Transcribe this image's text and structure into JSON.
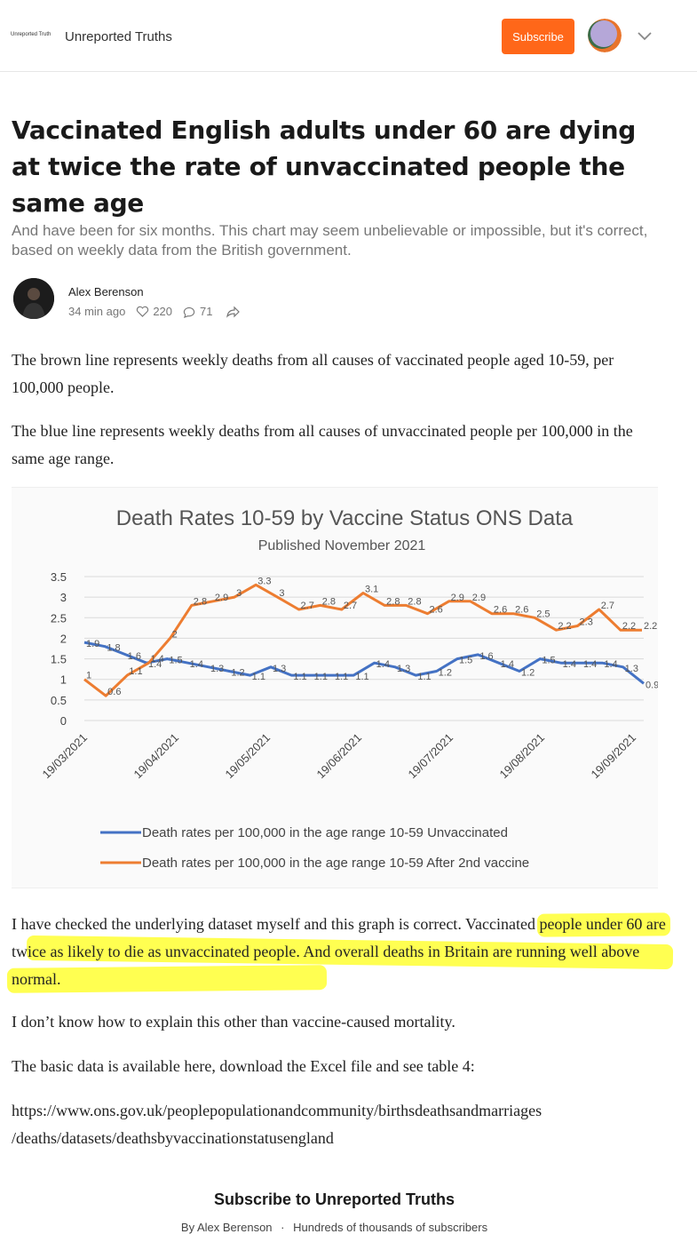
{
  "header": {
    "logo_text": "Unreported Truth",
    "publication": "Unreported Truths",
    "subscribe_label": "Subscribe"
  },
  "article": {
    "title": "Vaccinated English adults under 60 are dying at twice the rate of unvaccinated people the same age",
    "subtitle": "And have been for six months. This chart may seem unbelievable or impossible, but it's correct, based on weekly data from the British government.",
    "author": "Alex Berenson",
    "time": "34 min ago",
    "likes": "220",
    "comments": "71",
    "p1": "The brown line represents weekly deaths from all causes of vaccinated people aged 10-59, per 100,000 people.",
    "p2": "The blue line represents weekly deaths from all causes of unvaccinated people per 100,000 in the same age range.",
    "p3": "I have checked the underlying dataset myself and this graph is correct. Vaccinated people under 60 are twice as likely to die as unvaccinated people. And overall deaths in Britain are running well above normal.",
    "p4": "I don’t know how to explain this other than vaccine-caused mortality.",
    "p5": "The basic data is available here, download the Excel file and see table 4:",
    "p6_line1": "https://www.ons.gov.uk/peoplepopulationandcommunity/birthsdeathsandmarriages",
    "p6_line2": "/deaths/datasets/deathsbyvaccinationstatusengland"
  },
  "footer": {
    "title": "Subscribe to Unreported Truths",
    "by": "By Alex Berenson",
    "separator": "·",
    "subscribers": "Hundreds of thousands of subscribers"
  },
  "colors": {
    "accent": "#ff6719",
    "unvaccinated": "#4472c4",
    "vaccinated": "#ed7d31",
    "highlight": "#ffff33"
  },
  "chart_data": {
    "type": "line",
    "title": "Death Rates 10-59  by Vaccine Status ONS Data",
    "subtitle": "Published November 2021",
    "ylim": [
      0,
      3.5
    ],
    "yticks": [
      "0",
      "0.5",
      "1",
      "1.5",
      "2",
      "2.5",
      "3",
      "3.5"
    ],
    "xticks": [
      "19/03/2021",
      "19/04/2021",
      "19/05/2021",
      "19/06/2021",
      "19/07/2021",
      "19/08/2021",
      "19/09/2021"
    ],
    "grid": true,
    "legend_position": "bottom",
    "series": [
      {
        "name": "Death rates per 100,000 in the age range 10-59 Unvaccinated",
        "color": "#4472c4",
        "values": [
          1.9,
          1.8,
          1.6,
          1.4,
          1.5,
          1.4,
          1.3,
          1.2,
          1.1,
          1.3,
          1.1,
          1.1,
          1.1,
          1.1,
          1.4,
          1.3,
          1.1,
          1.2,
          1.5,
          1.6,
          1.4,
          1.2,
          1.5,
          1.4,
          1.4,
          1.4,
          1.3,
          0.9
        ],
        "labels": [
          "1.9",
          "1.8",
          "1.6",
          "1.4",
          "1.5",
          "1.4",
          "1.3",
          "1.2",
          "1.1",
          "1.3",
          "1.1",
          "1.1",
          "1.1",
          "1.1",
          "1.4",
          "1.3",
          "1.1",
          "1.2",
          "1.5",
          "1.6",
          "1.4",
          "1.2",
          "1.5",
          "1.4",
          "1.4",
          "1.4",
          "1.3",
          "0.9"
        ]
      },
      {
        "name": "Death rates per 100,000 in the age range 10-59 After 2nd  vaccine",
        "color": "#ed7d31",
        "values": [
          1,
          0.6,
          1.1,
          1.4,
          2,
          2.8,
          2.9,
          3,
          3.3,
          3,
          2.7,
          2.8,
          2.7,
          3.1,
          2.8,
          2.8,
          2.6,
          2.9,
          2.9,
          2.6,
          2.6,
          2.5,
          2.2,
          2.3,
          2.7,
          2.2,
          2.2
        ],
        "labels": [
          "1",
          "0.6",
          "1.1",
          "1.4",
          "2",
          "2.8",
          "2.9",
          "3",
          "3.3",
          "3",
          "2.7",
          "2.8",
          "2.7",
          "3.1",
          "2.8",
          "2.8",
          "2.6",
          "2.9",
          "2.9",
          "2.6",
          "2.6",
          "2.5",
          "2.2",
          "2.3",
          "2.7",
          "2.2",
          "2.2"
        ]
      }
    ]
  }
}
